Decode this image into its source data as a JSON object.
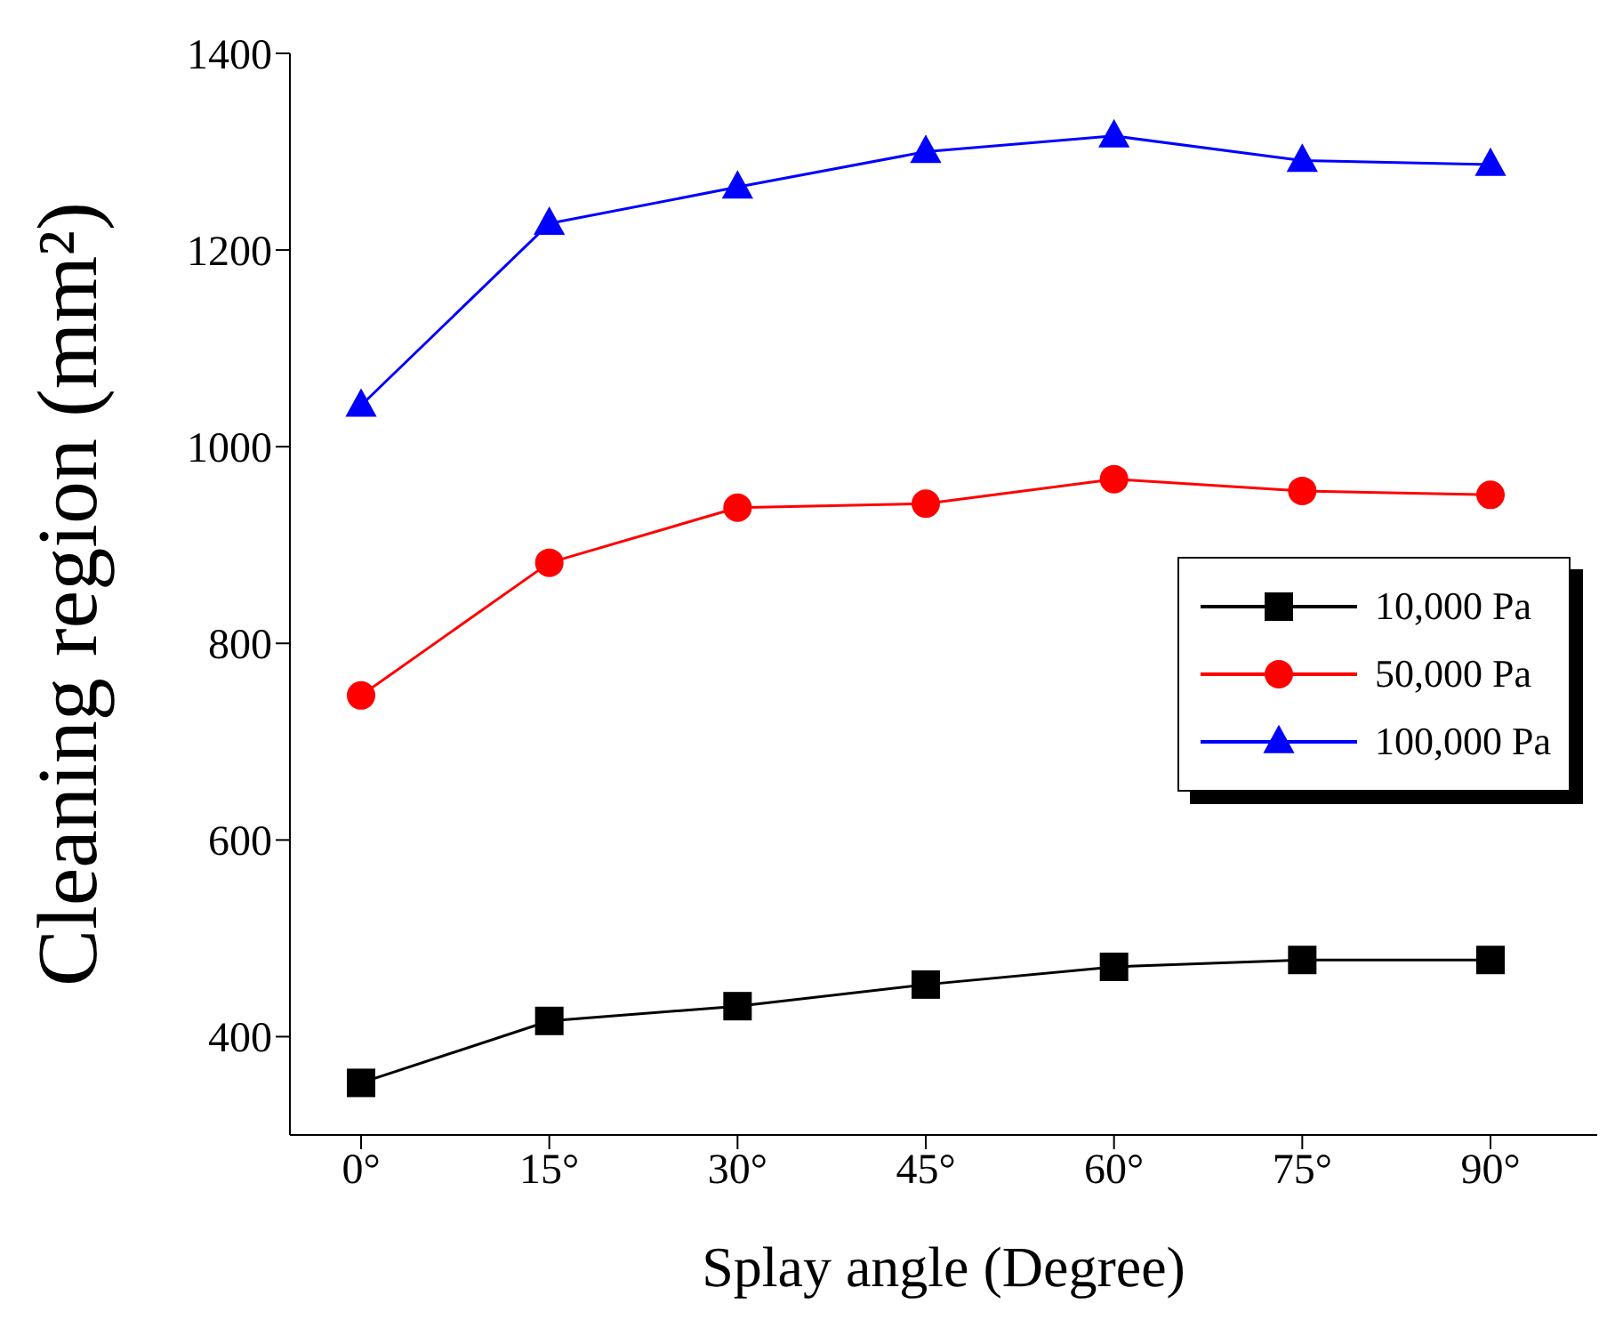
{
  "chart_data": {
    "type": "line",
    "xlabel": "Splay angle (Degree)",
    "ylabel": "Cleaning region (mm²)",
    "categories": [
      "0°",
      "15°",
      "30°",
      "45°",
      "60°",
      "75°",
      "90°"
    ],
    "series": [
      {
        "name": "10,000 Pa",
        "color": "#000000",
        "marker": "square",
        "values": [
          353,
          416,
          431,
          453,
          471,
          478,
          478
        ]
      },
      {
        "name": "50,000 Pa",
        "color": "#ff0000",
        "marker": "circle",
        "values": [
          747,
          882,
          938,
          942,
          967,
          955,
          951
        ]
      },
      {
        "name": "100,000 Pa",
        "color": "#0000ff",
        "marker": "triangle",
        "values": [
          1042,
          1227,
          1264,
          1300,
          1316,
          1291,
          1287
        ]
      }
    ],
    "ylim": [
      300,
      1400
    ],
    "yticks": [
      400,
      600,
      800,
      1000,
      1200,
      1400
    ],
    "grid": false,
    "legend": "right",
    "line_style": "solid"
  }
}
